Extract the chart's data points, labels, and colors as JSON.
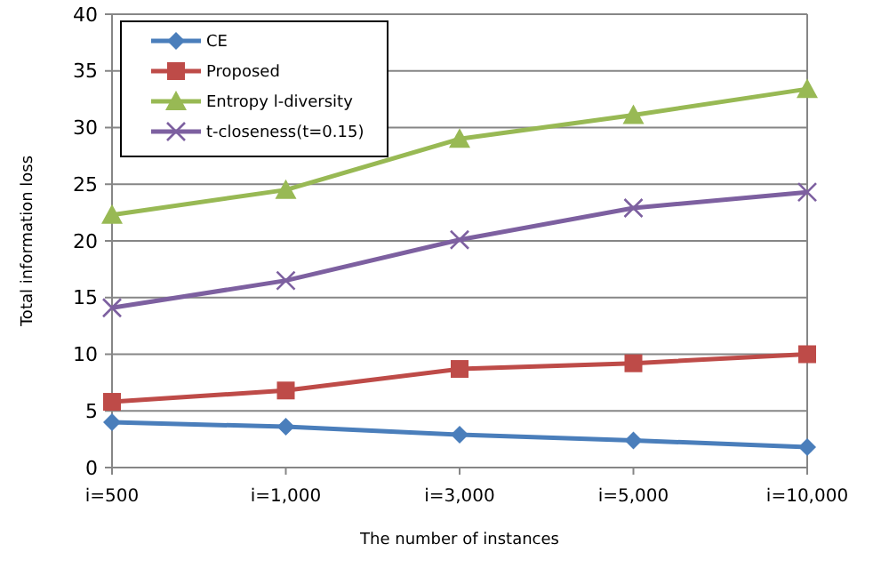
{
  "chart_data": {
    "type": "line",
    "xlabel": "The number of instances",
    "ylabel": "Total information loss",
    "categories": [
      "i=500",
      "i=1,000",
      "i=3,000",
      "i=5,000",
      "i=10,000"
    ],
    "ylim": [
      0,
      40
    ],
    "yticks": [
      0,
      5,
      10,
      15,
      20,
      25,
      30,
      35,
      40
    ],
    "grid": "y",
    "legend": "top left",
    "series": [
      {
        "name": "CE",
        "color": "#4a7ebb",
        "marker": "diamond",
        "values": [
          4.0,
          3.6,
          2.9,
          2.4,
          1.8
        ]
      },
      {
        "name": "Proposed",
        "color": "#be4b48",
        "marker": "square",
        "values": [
          5.8,
          6.8,
          8.7,
          9.2,
          10.0
        ]
      },
      {
        "name": "Entropy l-diversity",
        "color": "#98b954",
        "marker": "triangle",
        "values": [
          22.3,
          24.5,
          29.0,
          31.1,
          33.4
        ]
      },
      {
        "name": "t-closeness(t=0.15)",
        "color": "#7d60a0",
        "marker": "cross",
        "values": [
          14.1,
          16.5,
          20.1,
          22.9,
          24.3
        ]
      }
    ]
  }
}
